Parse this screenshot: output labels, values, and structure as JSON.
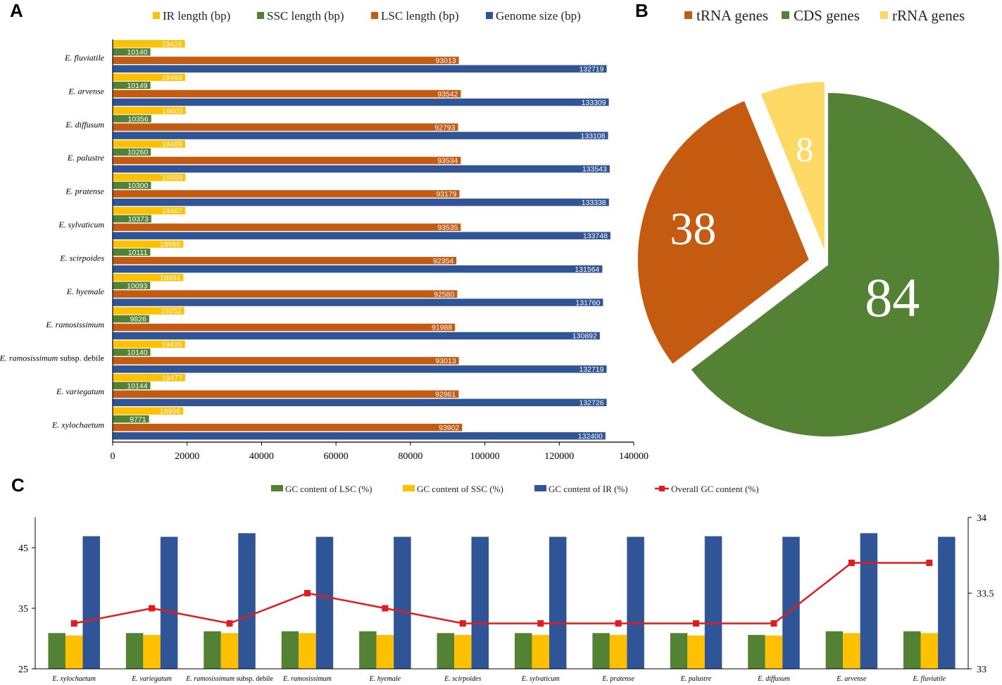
{
  "panels": {
    "a": "A",
    "b": "B",
    "c": "C"
  },
  "colors": {
    "ir": "#FFC000",
    "ssc": "#548235",
    "lsc": "#C55A11",
    "genome": "#2F5597",
    "trna": "#C55A11",
    "cds": "#548235",
    "rrna": "#FFD966",
    "gc_lsc": "#548235",
    "gc_ssc": "#FFC000",
    "gc_ir": "#2F5597",
    "overall": "#E41A1C"
  },
  "chart_data": [
    {
      "id": "A",
      "type": "bar",
      "orientation": "horizontal",
      "legend_position": "top",
      "categories": [
        "E. fluviatile",
        "E. arvense",
        "E. diffusum",
        "E. palustre",
        "E. pratense",
        "E. sylvaticum",
        "E. scirpoides",
        "E. hyemale",
        "E. ramosissimum",
        "E. ramosissimum subsp. debile",
        "E. variegatum",
        "E. xylochaetum"
      ],
      "category_parts": [
        {
          "italic": "E. fluviatile",
          "plain": ""
        },
        {
          "italic": "E. arvense",
          "plain": ""
        },
        {
          "italic": "E. diffusum",
          "plain": ""
        },
        {
          "italic": "E. palustre",
          "plain": ""
        },
        {
          "italic": "E. pratense",
          "plain": ""
        },
        {
          "italic": "E. sylvaticum",
          "plain": ""
        },
        {
          "italic": "E. scirpoides",
          "plain": ""
        },
        {
          "italic": "E. hyemale",
          "plain": ""
        },
        {
          "italic": "E. ramosissimum",
          "plain": ""
        },
        {
          "italic": "E. ramosissimum",
          "plain": " subsp. debile"
        },
        {
          "italic": "E. variegatum",
          "plain": ""
        },
        {
          "italic": "E. xylochaetum",
          "plain": ""
        }
      ],
      "series": [
        {
          "key": "ir",
          "name": "IR length (bp)",
          "values": [
            19426,
            19469,
            19603,
            19489,
            19559,
            19467,
            18988,
            18994,
            19252,
            19426,
            19477,
            18956
          ]
        },
        {
          "key": "ssc",
          "name": "SSC length (bp)",
          "values": [
            10140,
            10149,
            10356,
            10260,
            10300,
            10373,
            10111,
            10093,
            9826,
            10140,
            10144,
            9771
          ]
        },
        {
          "key": "lsc",
          "name": "LSC length (bp)",
          "values": [
            93013,
            93542,
            92793,
            93534,
            93179,
            93535,
            92354,
            92580,
            91988,
            93013,
            92961,
            93902
          ]
        },
        {
          "key": "genome",
          "name": "Genome size (bp)",
          "values": [
            132719,
            133309,
            133108,
            133543,
            133338,
            133748,
            131564,
            131760,
            130892,
            132719,
            132726,
            132400
          ]
        }
      ],
      "xlim": [
        0,
        140000
      ],
      "xticks": [
        "0",
        "20000",
        "40000",
        "60000",
        "80000",
        "100000",
        "120000",
        "140000"
      ]
    },
    {
      "id": "B",
      "type": "pie",
      "legend_position": "top",
      "slices": [
        {
          "key": "trna",
          "name": "tRNA genes",
          "value": 38
        },
        {
          "key": "cds",
          "name": "CDS genes",
          "value": 84
        },
        {
          "key": "rrna",
          "name": "rRNA genes",
          "value": 8
        }
      ],
      "labels": [
        "38",
        "84",
        "8"
      ]
    },
    {
      "id": "C",
      "type": "bar",
      "legend_position": "top",
      "categories": [
        "E. xylochaetum",
        "E. variegatum",
        "E. ramosissimum subsp. debile",
        "E. ramosissimum",
        "E. hyemale",
        "E. scirpoides",
        "E. sylvaticum",
        "E. pratense",
        "E. palustre",
        "E. diffusum",
        "E. arvense",
        "E. fluviatile"
      ],
      "category_parts": [
        {
          "italic": "E. xylochaetum",
          "plain": ""
        },
        {
          "italic": "E. variegatum",
          "plain": ""
        },
        {
          "italic": "E. ramosissimum",
          "plain": " subsp. debile"
        },
        {
          "italic": "E. ramosissimum",
          "plain": ""
        },
        {
          "italic": "E. hyemale",
          "plain": ""
        },
        {
          "italic": "E. scirpoides",
          "plain": ""
        },
        {
          "italic": "E. sylvaticum",
          "plain": ""
        },
        {
          "italic": "E. pratense",
          "plain": ""
        },
        {
          "italic": "E. palustre",
          "plain": ""
        },
        {
          "italic": "E. diffusum",
          "plain": ""
        },
        {
          "italic": "E. arvense",
          "plain": ""
        },
        {
          "italic": "E. fluviatile",
          "plain": ""
        }
      ],
      "series": [
        {
          "key": "gc_lsc",
          "name": "GC content of LSC (%)",
          "axis": "left",
          "values": [
            30.9,
            30.9,
            31.2,
            31.2,
            31.2,
            30.9,
            30.9,
            30.9,
            30.9,
            30.6,
            31.2,
            31.2
          ]
        },
        {
          "key": "gc_ssc",
          "name": "GC content of SSC (%)",
          "axis": "left",
          "values": [
            30.5,
            30.6,
            30.9,
            30.9,
            30.6,
            30.6,
            30.6,
            30.6,
            30.5,
            30.5,
            30.9,
            30.9
          ]
        },
        {
          "key": "gc_ir",
          "name": "GC content of IR (%)",
          "axis": "left",
          "values": [
            46.9,
            46.8,
            47.4,
            46.8,
            46.8,
            46.8,
            46.8,
            46.8,
            46.9,
            46.8,
            47.4,
            46.8
          ]
        },
        {
          "key": "overall",
          "name": "Overall GC content (%)",
          "axis": "right",
          "type": "line",
          "values": [
            33.3,
            33.4,
            33.3,
            33.5,
            33.4,
            33.3,
            33.3,
            33.3,
            33.3,
            33.3,
            33.7,
            33.7
          ]
        }
      ],
      "ylim_left": [
        25,
        50
      ],
      "yticks_left": [
        "25",
        "35",
        "45"
      ],
      "ylim_right": [
        33,
        34
      ],
      "yticks_right": [
        "33",
        "33.5",
        "34"
      ]
    }
  ]
}
